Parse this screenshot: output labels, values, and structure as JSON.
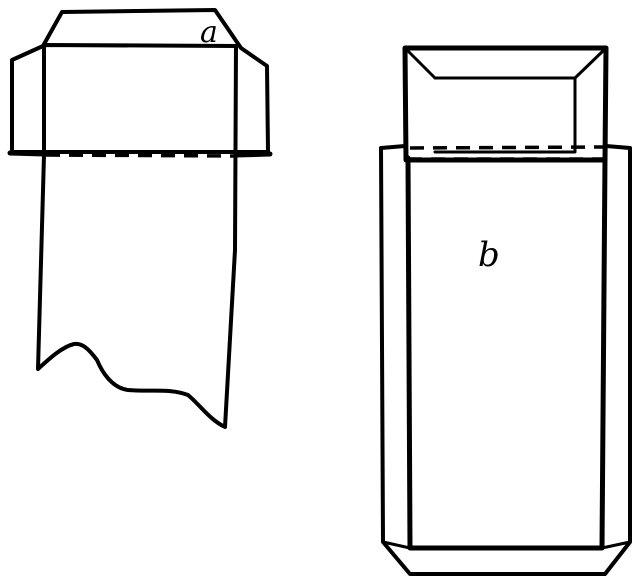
{
  "figure": {
    "label_a": "a",
    "label_b": "b",
    "ink_color": "#000000",
    "background_color": "#ffffff"
  }
}
